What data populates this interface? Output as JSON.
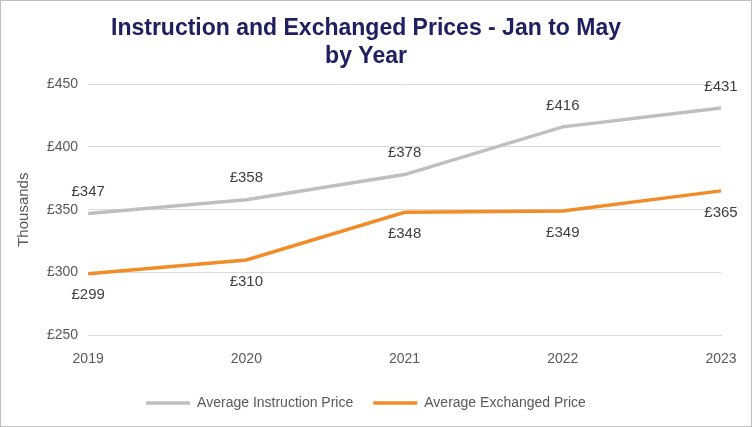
{
  "chart_data": {
    "type": "line",
    "title": [
      "Instruction and Exchanged Prices - Jan to May",
      "by Year"
    ],
    "y_label": "Thousands",
    "categories": [
      "2019",
      "2020",
      "2021",
      "2022",
      "2023"
    ],
    "series": [
      {
        "name": "Average Instruction Price",
        "color": "#BFBFBF",
        "values": [
          347,
          358,
          378,
          416,
          431
        ],
        "value_labels": [
          "£347",
          "£358",
          "£378",
          "£416",
          "£431"
        ]
      },
      {
        "name": "Average Exchanged Price",
        "color": "#F28C28",
        "values": [
          299,
          310,
          348,
          349,
          365
        ],
        "value_labels": [
          "£299",
          "£310",
          "£348",
          "£349",
          "£365"
        ]
      }
    ],
    "ylim": [
      250,
      450
    ],
    "yticks": [
      {
        "value": 250,
        "label": "£250"
      },
      {
        "value": 300,
        "label": "£300"
      },
      {
        "value": 350,
        "label": "£350"
      },
      {
        "value": 400,
        "label": "£400"
      },
      {
        "value": 450,
        "label": "£450"
      }
    ],
    "grid": true,
    "legend": "bottom",
    "data_labels": true
  }
}
